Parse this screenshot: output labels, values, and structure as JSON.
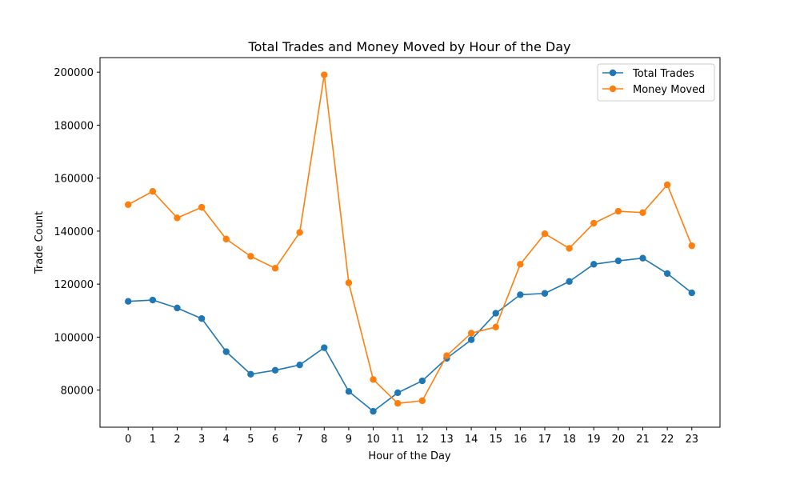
{
  "chart_data": {
    "type": "line",
    "title": "Total Trades and Money Moved by Hour of the Day",
    "xlabel": "Hour of the Day",
    "ylabel": "Trade Count",
    "categories": [
      "0",
      "1",
      "2",
      "3",
      "4",
      "5",
      "6",
      "7",
      "8",
      "9",
      "10",
      "11",
      "12",
      "13",
      "14",
      "15",
      "16",
      "17",
      "18",
      "19",
      "20",
      "21",
      "22",
      "23"
    ],
    "xlim": [
      -1.15,
      24.15
    ],
    "ylim": [
      66000,
      205500
    ],
    "yticks": [
      80000,
      100000,
      120000,
      140000,
      160000,
      180000,
      200000
    ],
    "ytick_labels": [
      "80000",
      "100000",
      "120000",
      "140000",
      "160000",
      "180000",
      "200000"
    ],
    "grid": false,
    "legend_position": "top-right",
    "series": [
      {
        "name": "Total Trades",
        "color": "#1f77b4",
        "values": [
          113500,
          114000,
          111000,
          107000,
          94500,
          86000,
          87500,
          89500,
          96000,
          79500,
          72000,
          79000,
          83500,
          92000,
          99000,
          109000,
          116000,
          116500,
          121000,
          127500,
          128800,
          129800,
          124000,
          116700
        ]
      },
      {
        "name": "Money Moved",
        "color": "#ff7f0e",
        "values": [
          150000,
          155000,
          145000,
          149000,
          137000,
          130500,
          126000,
          139500,
          199000,
          120500,
          84000,
          75000,
          76000,
          93000,
          101500,
          103800,
          127500,
          139000,
          133500,
          143000,
          147500,
          147000,
          157500,
          134500
        ]
      }
    ]
  }
}
